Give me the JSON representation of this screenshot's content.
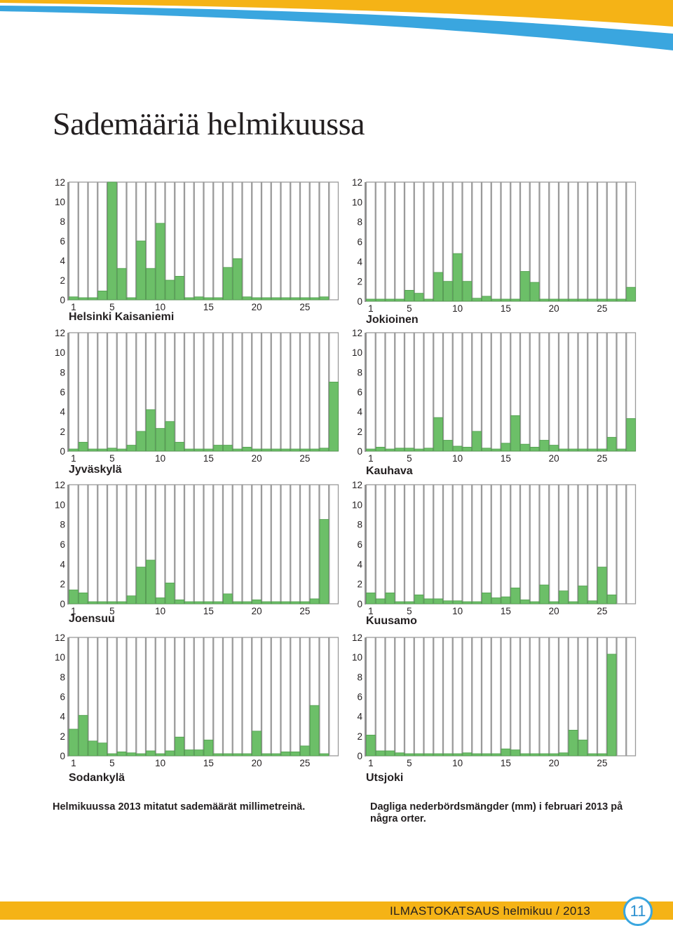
{
  "title": "Sademääriä helmikuussa",
  "colors": {
    "bar": "#6cbf68",
    "bar_border": "#4f9c4c",
    "empty_cell": "#9a9a9a",
    "accent": "#f5b316",
    "accent_blue": "#3aa6df"
  },
  "captions": {
    "fi": "Helmikuussa 2013 mitatut sademäärät millimetreinä.",
    "sv": "Dagliga nederbördsmängder (mm) i februari 2013 på några orter."
  },
  "footer": {
    "text": "ILMASTOKATSAUS helmikuu / 2013",
    "page_number": "11"
  },
  "chart_data": [
    {
      "type": "bar",
      "title": "Helsinki Kaisaniemi",
      "ylim": [
        0,
        12
      ],
      "yticks": [
        0,
        2,
        4,
        6,
        8,
        10,
        12
      ],
      "xticks": [
        1,
        5,
        10,
        15,
        20,
        25
      ],
      "categories": [
        1,
        2,
        3,
        4,
        5,
        6,
        7,
        8,
        9,
        10,
        11,
        12,
        13,
        14,
        15,
        16,
        17,
        18,
        19,
        20,
        21,
        22,
        23,
        24,
        25,
        26,
        27,
        28
      ],
      "values": [
        0.3,
        0.1,
        0.1,
        0.9,
        12.0,
        3.2,
        0.1,
        6.0,
        3.2,
        7.8,
        2.0,
        2.4,
        0.1,
        0.3,
        0.1,
        0.1,
        3.3,
        4.2,
        0.3,
        0.1,
        0.1,
        0.1,
        0.1,
        0.1,
        0.1,
        0.1,
        0.3,
        0.0
      ]
    },
    {
      "type": "bar",
      "title": "Jokioinen",
      "ylim": [
        0,
        12
      ],
      "yticks": [
        0,
        2,
        4,
        6,
        8,
        10,
        12
      ],
      "xticks": [
        1,
        5,
        10,
        15,
        20,
        25
      ],
      "categories": [
        1,
        2,
        3,
        4,
        5,
        6,
        7,
        8,
        9,
        10,
        11,
        12,
        13,
        14,
        15,
        16,
        17,
        18,
        19,
        20,
        21,
        22,
        23,
        24,
        25,
        26,
        27,
        28
      ],
      "values": [
        0.1,
        0.1,
        0.1,
        0.1,
        1.1,
        0.8,
        0.1,
        2.9,
        2.0,
        4.8,
        2.0,
        0.3,
        0.5,
        0.1,
        0.1,
        0.1,
        3.0,
        1.9,
        0.2,
        0.1,
        0.1,
        0.1,
        0.1,
        0.1,
        0.1,
        0.1,
        0.1,
        1.4
      ]
    },
    {
      "type": "bar",
      "title": "Jyväskylä",
      "ylim": [
        0,
        12
      ],
      "yticks": [
        0,
        2,
        4,
        6,
        8,
        10,
        12
      ],
      "xticks": [
        1,
        5,
        10,
        15,
        20,
        25
      ],
      "categories": [
        1,
        2,
        3,
        4,
        5,
        6,
        7,
        8,
        9,
        10,
        11,
        12,
        13,
        14,
        15,
        16,
        17,
        18,
        19,
        20,
        21,
        22,
        23,
        24,
        25,
        26,
        27,
        28
      ],
      "values": [
        0.1,
        0.9,
        0.2,
        0.1,
        0.3,
        0.1,
        0.6,
        2.0,
        4.2,
        2.3,
        3.0,
        0.9,
        0.2,
        0.2,
        0.1,
        0.6,
        0.6,
        0.1,
        0.4,
        0.1,
        0.1,
        0.1,
        0.1,
        0.1,
        0.1,
        0.1,
        0.3,
        7.0
      ]
    },
    {
      "type": "bar",
      "title": "Kauhava",
      "ylim": [
        0,
        12
      ],
      "yticks": [
        0,
        2,
        4,
        6,
        8,
        10,
        12
      ],
      "xticks": [
        1,
        5,
        10,
        15,
        20,
        25
      ],
      "categories": [
        1,
        2,
        3,
        4,
        5,
        6,
        7,
        8,
        9,
        10,
        11,
        12,
        13,
        14,
        15,
        16,
        17,
        18,
        19,
        20,
        21,
        22,
        23,
        24,
        25,
        26,
        27,
        28
      ],
      "values": [
        0.1,
        0.4,
        0.1,
        0.3,
        0.3,
        0.1,
        0.3,
        3.4,
        1.1,
        0.5,
        0.4,
        2.0,
        0.3,
        0.1,
        0.8,
        3.6,
        0.7,
        0.4,
        1.1,
        0.6,
        0.2,
        0.1,
        0.1,
        0.1,
        0.1,
        1.4,
        0.1,
        3.3
      ]
    },
    {
      "type": "bar",
      "title": "Joensuu",
      "ylim": [
        0,
        12
      ],
      "yticks": [
        0,
        2,
        4,
        6,
        8,
        10,
        12
      ],
      "xticks": [
        1,
        5,
        10,
        15,
        20,
        25
      ],
      "categories": [
        1,
        2,
        3,
        4,
        5,
        6,
        7,
        8,
        9,
        10,
        11,
        12,
        13,
        14,
        15,
        16,
        17,
        18,
        19,
        20,
        21,
        22,
        23,
        24,
        25,
        26,
        27,
        28
      ],
      "values": [
        1.4,
        1.1,
        0.1,
        0.1,
        0.1,
        0.1,
        0.8,
        3.7,
        4.4,
        0.6,
        2.1,
        0.4,
        0.1,
        0.1,
        0.1,
        0.1,
        1.0,
        0.1,
        0.1,
        0.4,
        0.1,
        0.1,
        0.1,
        0.1,
        0.1,
        0.5,
        8.5,
        0.0
      ]
    },
    {
      "type": "bar",
      "title": "Kuusamo",
      "ylim": [
        0,
        12
      ],
      "yticks": [
        0,
        2,
        4,
        6,
        8,
        10,
        12
      ],
      "xticks": [
        1,
        5,
        10,
        15,
        20,
        25
      ],
      "categories": [
        1,
        2,
        3,
        4,
        5,
        6,
        7,
        8,
        9,
        10,
        11,
        12,
        13,
        14,
        15,
        16,
        17,
        18,
        19,
        20,
        21,
        22,
        23,
        24,
        25,
        26,
        27,
        28
      ],
      "values": [
        1.1,
        0.5,
        1.1,
        0.2,
        0.2,
        0.9,
        0.5,
        0.5,
        0.3,
        0.3,
        0.1,
        0.1,
        1.1,
        0.6,
        0.7,
        1.6,
        0.4,
        0.1,
        1.9,
        0.1,
        1.3,
        0.1,
        1.8,
        0.3,
        3.7,
        0.9,
        0.0,
        0.0
      ]
    },
    {
      "type": "bar",
      "title": "Sodankylä",
      "ylim": [
        0,
        12
      ],
      "yticks": [
        0,
        2,
        4,
        6,
        8,
        10,
        12
      ],
      "xticks": [
        1,
        5,
        10,
        15,
        20,
        25
      ],
      "categories": [
        1,
        2,
        3,
        4,
        5,
        6,
        7,
        8,
        9,
        10,
        11,
        12,
        13,
        14,
        15,
        16,
        17,
        18,
        19,
        20,
        21,
        22,
        23,
        24,
        25,
        26,
        27,
        28
      ],
      "values": [
        2.7,
        4.1,
        1.5,
        1.3,
        0.2,
        0.4,
        0.3,
        0.1,
        0.5,
        0.1,
        0.5,
        1.9,
        0.6,
        0.6,
        1.6,
        0.1,
        0.1,
        0.1,
        0.1,
        2.5,
        0.1,
        0.1,
        0.4,
        0.4,
        1.0,
        5.1,
        0.2,
        0.0
      ]
    },
    {
      "type": "bar",
      "title": "Utsjoki",
      "ylim": [
        0,
        12
      ],
      "yticks": [
        0,
        2,
        4,
        6,
        8,
        10,
        12
      ],
      "xticks": [
        1,
        5,
        10,
        15,
        20,
        25
      ],
      "categories": [
        1,
        2,
        3,
        4,
        5,
        6,
        7,
        8,
        9,
        10,
        11,
        12,
        13,
        14,
        15,
        16,
        17,
        18,
        19,
        20,
        21,
        22,
        23,
        24,
        25,
        26,
        27,
        28
      ],
      "values": [
        2.1,
        0.5,
        0.5,
        0.3,
        0.1,
        0.1,
        0.1,
        0.1,
        0.1,
        0.1,
        0.3,
        0.1,
        0.1,
        0.1,
        0.7,
        0.6,
        0.1,
        0.1,
        0.1,
        0.1,
        0.3,
        2.6,
        1.6,
        0.1,
        0.1,
        10.3,
        0.0,
        0.0
      ]
    }
  ]
}
